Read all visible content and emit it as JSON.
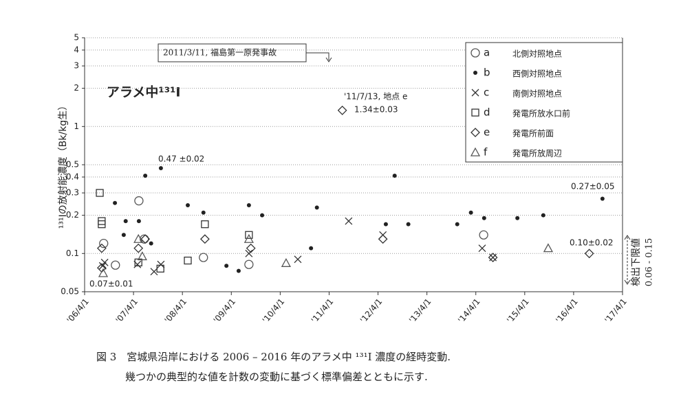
{
  "chart_data": {
    "type": "scatter",
    "title": "アラメ中¹³¹I",
    "y_label": "¹³¹Iの放射能濃度（Bk/kg生）",
    "log_y": true,
    "grid": true,
    "legend_position": "upper right",
    "xlim": [
      2006.25,
      2017.25
    ],
    "xticks": [
      {
        "value": 2006.25,
        "label": "'06/4/1"
      },
      {
        "value": 2007.25,
        "label": "'07/4/1"
      },
      {
        "value": 2008.25,
        "label": "'08/4/1"
      },
      {
        "value": 2009.25,
        "label": "'09/4/1"
      },
      {
        "value": 2010.25,
        "label": "'10/4/1"
      },
      {
        "value": 2011.25,
        "label": "'11/4/1"
      },
      {
        "value": 2012.25,
        "label": "'12/4/1"
      },
      {
        "value": 2013.25,
        "label": "'13/4/1"
      },
      {
        "value": 2014.25,
        "label": "'14/4/1"
      },
      {
        "value": 2015.25,
        "label": "'15/4/1"
      },
      {
        "value": 2016.25,
        "label": "'16/4/1"
      },
      {
        "value": 2017.25,
        "label": "'17/4/1"
      }
    ],
    "ylim": [
      0.05,
      5
    ],
    "yticks": [
      0.05,
      0.1,
      0.2,
      0.3,
      0.4,
      0.5,
      1,
      2,
      3,
      4,
      5
    ],
    "series": [
      {
        "label": "a",
        "name": "北側対照地点",
        "marker": "circle",
        "color": "#555555",
        "x": [
          2006.64,
          2006.88,
          2007.36,
          2007.47,
          2008.68,
          2009.61,
          2014.41
        ],
        "values": [
          0.12,
          0.081,
          0.26,
          0.13,
          0.093,
          0.082,
          0.14
        ]
      },
      {
        "label": "b",
        "name": "西側対照地点",
        "marker": "dot",
        "color": "#222222",
        "x": [
          2006.87,
          2007.05,
          2007.09,
          2007.36,
          2007.49,
          2007.61,
          2007.81,
          2008.36,
          2008.68,
          2009.15,
          2009.4,
          2009.61,
          2009.88,
          2010.88,
          2011.0,
          2012.41,
          2012.59,
          2012.87,
          2013.87,
          2014.15,
          2014.42,
          2015.1,
          2015.63,
          2016.84
        ],
        "values": [
          0.25,
          0.14,
          0.18,
          0.18,
          0.41,
          0.12,
          0.47,
          0.24,
          0.21,
          0.08,
          0.073,
          0.24,
          0.2,
          0.11,
          0.23,
          0.17,
          0.41,
          0.17,
          0.17,
          0.21,
          0.19,
          0.19,
          0.2,
          0.27
        ]
      },
      {
        "label": "c",
        "name": "南側対照地点",
        "marker": "cross",
        "color": "#333333",
        "x": [
          2006.62,
          2006.66,
          2007.33,
          2007.67,
          2007.81,
          2009.61,
          2010.61,
          2011.65,
          2012.35,
          2014.38,
          2014.6
        ],
        "values": [
          0.08,
          0.085,
          0.082,
          0.072,
          0.082,
          0.1,
          0.09,
          0.18,
          0.14,
          0.11,
          0.093
        ]
      },
      {
        "label": "d",
        "name": "発電所放水口前",
        "marker": "square",
        "color": "#333333",
        "x": [
          2006.56,
          2006.6,
          2006.6,
          2007.35,
          2007.8,
          2008.36,
          2008.71,
          2009.61
        ],
        "values": [
          0.3,
          0.18,
          0.17,
          0.085,
          0.076,
          0.088,
          0.17,
          0.14
        ]
      },
      {
        "label": "e",
        "name": "発電所前面",
        "marker": "diamond",
        "color": "#333333",
        "x": [
          2006.6,
          2006.6,
          2007.35,
          2007.49,
          2008.71,
          2009.65,
          2011.52,
          2012.35,
          2014.6,
          2016.57
        ],
        "values": [
          0.077,
          0.11,
          0.11,
          0.13,
          0.13,
          0.11,
          1.34,
          0.13,
          0.093,
          0.1
        ]
      },
      {
        "label": "f",
        "name": "発電所放周辺",
        "marker": "triangle",
        "color": "#555555",
        "x": [
          2006.63,
          2007.35,
          2007.43,
          2009.61,
          2010.37,
          2015.73
        ],
        "values": [
          0.07,
          0.13,
          0.095,
          0.13,
          0.084,
          0.11
        ]
      }
    ],
    "annotations": [
      "2011/3/11, 福島第一原発事故",
      "0.47 ±0.02",
      "0.07±0.01",
      "'11/7/13, 地点 e",
      "1.34±0.03",
      "0.27±0.05",
      "0.10±0.02"
    ],
    "detection_limit_label": "検出下限値",
    "detection_limit_range": "0.06 - 0.15",
    "caption": [
      "図 3　宮城県沿岸における 2006 – 2016 年のアラメ中 ¹³¹I 濃度の経時変動.",
      "幾つかの典型的な値を計数の変動に基づく標準偏差とともに示す."
    ]
  }
}
